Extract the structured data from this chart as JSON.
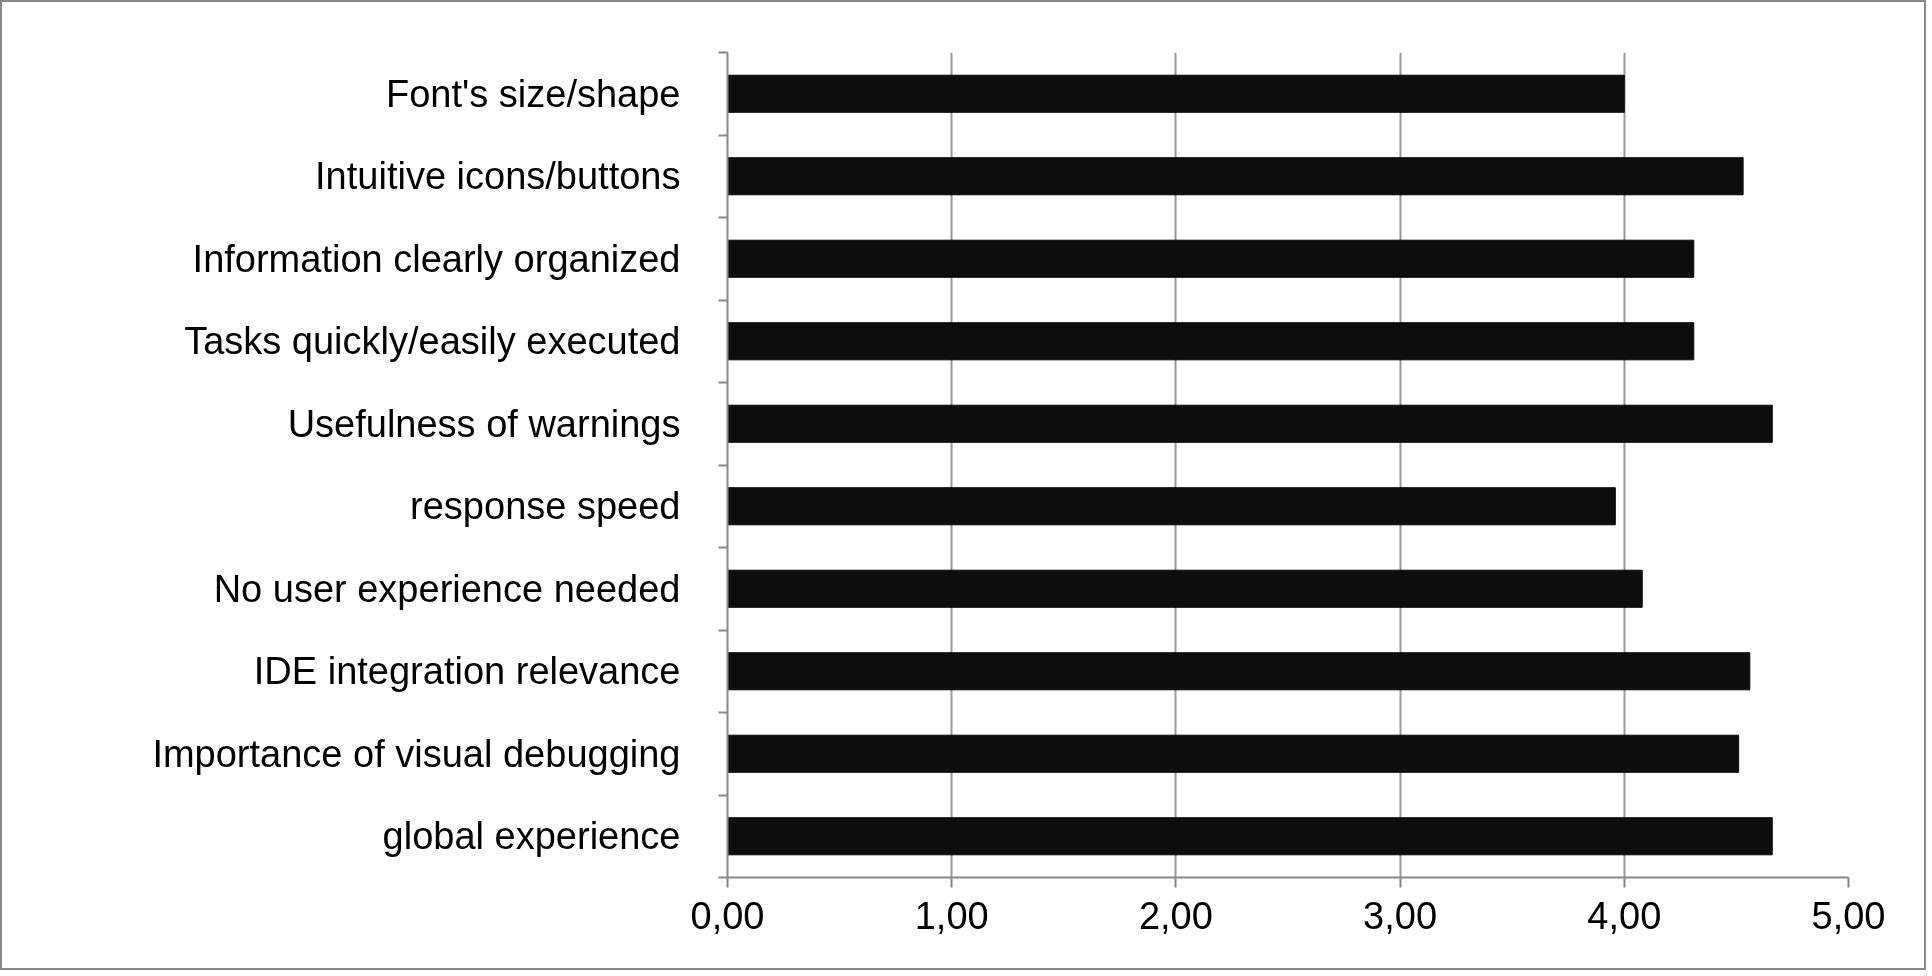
{
  "chart_data": {
    "type": "bar",
    "orientation": "horizontal",
    "categories": [
      "Font's size/shape",
      "Intuitive icons/buttons",
      "Information clearly organized",
      "Tasks quickly/easily executed",
      "Usefulness of warnings",
      "response speed",
      "No user experience needed",
      "IDE integration relevance",
      "Importance of visual debugging",
      "global experience"
    ],
    "values": [
      4.0,
      4.53,
      4.31,
      4.31,
      4.66,
      3.96,
      4.08,
      4.56,
      4.51,
      4.66
    ],
    "color": "#0d0d0d",
    "xlim": [
      0,
      5
    ],
    "xticks": [
      {
        "value": 0,
        "label": "0,00"
      },
      {
        "value": 1,
        "label": "1,00"
      },
      {
        "value": 2,
        "label": "2,00"
      },
      {
        "value": 3,
        "label": "3,00"
      },
      {
        "value": 4,
        "label": "4,00"
      },
      {
        "value": 5,
        "label": "5,00"
      }
    ],
    "grid": "x"
  }
}
